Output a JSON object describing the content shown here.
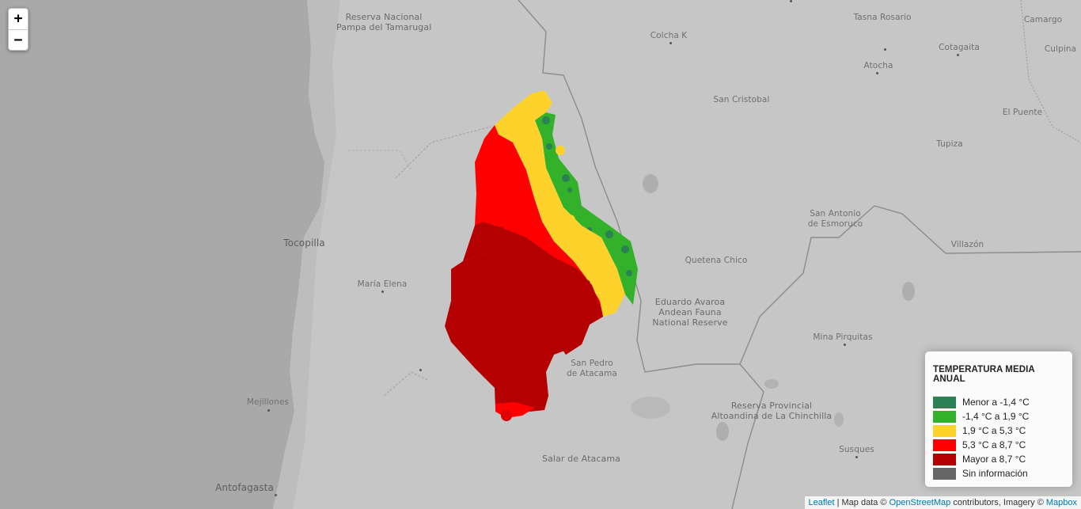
{
  "map": {
    "zoom_in_label": "+",
    "zoom_out_label": "−",
    "places": [
      {
        "key": "reserva_tamarugal",
        "text": "Reserva Nacional\nPampa del Tamarugal",
        "style": "park"
      },
      {
        "key": "colcha_k",
        "text": "Colcha K",
        "style": ""
      },
      {
        "key": "tasna_rosario",
        "text": "Tasna Rosario",
        "style": ""
      },
      {
        "key": "camargo",
        "text": "Camargo",
        "style": ""
      },
      {
        "key": "cotagaita",
        "text": "Cotagaita",
        "style": ""
      },
      {
        "key": "culpina",
        "text": "Culpina",
        "style": ""
      },
      {
        "key": "atocha",
        "text": "Atocha",
        "style": ""
      },
      {
        "key": "san_cristobal",
        "text": "San Cristobal",
        "style": ""
      },
      {
        "key": "el_puente",
        "text": "El Puente",
        "style": ""
      },
      {
        "key": "tupiza",
        "text": "Tupiza",
        "style": ""
      },
      {
        "key": "san_antonio",
        "text": "San Antonio\nde Esmoruco",
        "style": ""
      },
      {
        "key": "villazon",
        "text": "Villazón",
        "style": ""
      },
      {
        "key": "tocopilla",
        "text": "Tocopilla",
        "style": "big"
      },
      {
        "key": "maria_elena",
        "text": "María Elena",
        "style": ""
      },
      {
        "key": "quetena_chico",
        "text": "Quetena Chico",
        "style": ""
      },
      {
        "key": "eduardo_avaroa",
        "text": "Eduardo Avaroa\nAndean Fauna\nNational Reserve",
        "style": "park"
      },
      {
        "key": "mina_pirquitas",
        "text": "Mina Pirquitas",
        "style": ""
      },
      {
        "key": "san_pedro",
        "text": "San Pedro\nde Atacama",
        "style": ""
      },
      {
        "key": "reserva_chinchilla",
        "text": "Reserva Provincial\nAltoandina de La Chinchilla",
        "style": "park"
      },
      {
        "key": "mejillones",
        "text": "Mejillones",
        "style": ""
      },
      {
        "key": "salar_atacama",
        "text": "Salar de Atacama",
        "style": "park"
      },
      {
        "key": "susques",
        "text": "Susques",
        "style": ""
      },
      {
        "key": "antofagasta",
        "text": "Antofagasta",
        "style": "big"
      }
    ]
  },
  "legend": {
    "title": "TEMPERATURA MEDIA ANUAL",
    "items": [
      {
        "label": "Menor a -1,4 °C",
        "color": "#2a8154"
      },
      {
        "label": "-1,4 °C a 1,9 °C",
        "color": "#33b12a"
      },
      {
        "label": "1,9 °C a 5,3 °C",
        "color": "#fdd32b"
      },
      {
        "label": "5,3 °C a 8,7 °C",
        "color": "#ff0000"
      },
      {
        "label": "Mayor a 8,7 °C",
        "color": "#b40000"
      },
      {
        "label": "Sin información",
        "color": "#666666"
      }
    ]
  },
  "attribution": {
    "leaflet": "Leaflet",
    "sep": " | Map data © ",
    "osm": "OpenStreetMap",
    "mid": " contributors, Imagery © ",
    "mapbox": "Mapbox"
  }
}
